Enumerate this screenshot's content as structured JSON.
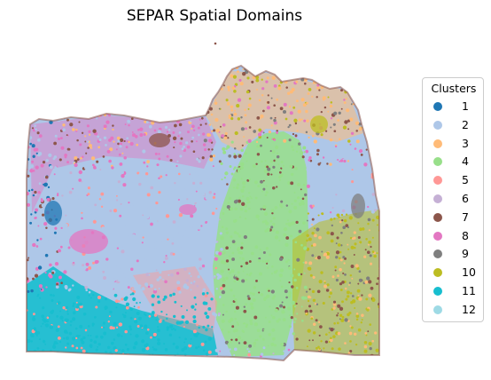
{
  "chart_data": {
    "type": "scatter",
    "title": "SEPAR Spatial Domains",
    "legend": {
      "title": "Clusters",
      "placement": "right"
    },
    "axes_visible": false,
    "grid": false,
    "series": [
      {
        "name": "1",
        "color": "#1f77b4"
      },
      {
        "name": "2",
        "color": "#aec7e8"
      },
      {
        "name": "3",
        "color": "#ffbb78"
      },
      {
        "name": "4",
        "color": "#98df8a"
      },
      {
        "name": "5",
        "color": "#ff9896"
      },
      {
        "name": "6",
        "color": "#c5b0d5"
      },
      {
        "name": "7",
        "color": "#8c564b"
      },
      {
        "name": "8",
        "color": "#e377c2"
      },
      {
        "name": "9",
        "color": "#7f7f7f"
      },
      {
        "name": "10",
        "color": "#bcbd22"
      },
      {
        "name": "11",
        "color": "#17becf"
      },
      {
        "name": "12",
        "color": "#9edae5"
      }
    ]
  }
}
